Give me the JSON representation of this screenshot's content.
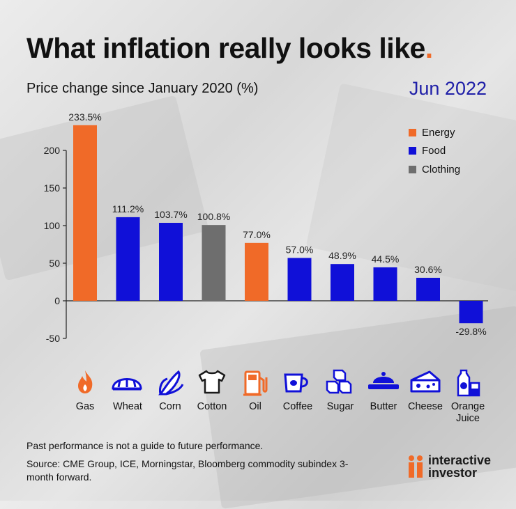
{
  "header": {
    "title": "What inflation really looks like",
    "title_dot": ".",
    "subtitle": "Price change since January 2020 (%)",
    "date": "Jun 2022"
  },
  "colors": {
    "energy": "#f06a28",
    "food": "#1010d8",
    "clothing": "#6e6e6e",
    "date_text": "#2020a8",
    "logo_orange": "#f06a28"
  },
  "chart_data": {
    "type": "bar",
    "title": "What inflation really looks like",
    "ylabel": "Price change since January 2020 (%)",
    "ylim": [
      -50,
      235
    ],
    "yticks": [
      -50,
      0,
      50,
      100,
      150,
      200
    ],
    "grid": false,
    "legend_position": "top-right",
    "categories": [
      "Gas",
      "Wheat",
      "Corn",
      "Cotton",
      "Oil",
      "Coffee",
      "Sugar",
      "Butter",
      "Cheese",
      "Orange Juice"
    ],
    "category_labels": [
      [
        "Gas"
      ],
      [
        "Wheat"
      ],
      [
        "Corn"
      ],
      [
        "Cotton"
      ],
      [
        "Oil"
      ],
      [
        "Coffee"
      ],
      [
        "Sugar"
      ],
      [
        "Butter"
      ],
      [
        "Cheese"
      ],
      [
        "Orange",
        "Juice"
      ]
    ],
    "values": [
      233.5,
      111.2,
      103.7,
      100.8,
      77.0,
      57.0,
      48.9,
      44.5,
      30.6,
      -29.8
    ],
    "data_labels": [
      "233.5%",
      "111.2%",
      "103.7%",
      "100.8%",
      "77.0%",
      "57.0%",
      "48.9%",
      "44.5%",
      "30.6%",
      "-29.8%"
    ],
    "groups": [
      "Energy",
      "Food",
      "Food",
      "Clothing",
      "Energy",
      "Food",
      "Food",
      "Food",
      "Food",
      "Food"
    ],
    "legend": [
      {
        "name": "Energy",
        "color": "#f06a28"
      },
      {
        "name": "Food",
        "color": "#1010d8"
      },
      {
        "name": "Clothing",
        "color": "#6e6e6e"
      }
    ]
  },
  "icons": [
    "gas-icon",
    "wheat-bread-icon",
    "corn-icon",
    "cotton-tshirt-icon",
    "oil-pump-icon",
    "coffee-icon",
    "sugar-cubes-icon",
    "butter-icon",
    "cheese-icon",
    "orange-juice-icon"
  ],
  "footer": {
    "disclaimer": "Past performance is not a guide to future performance.",
    "source": "Source: CME Group, ICE, Morningstar, Bloomberg commodity subindex 3-month forward.",
    "logo_line1": "interactive",
    "logo_line2": "investor"
  }
}
